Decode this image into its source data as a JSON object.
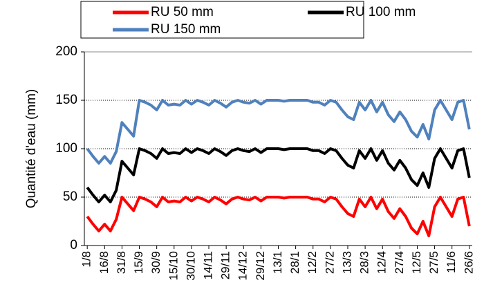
{
  "chart_data": {
    "type": "line",
    "y_label": "Quantité d'eau (mm)",
    "categories": [
      "1/8",
      null,
      null,
      "16/8",
      null,
      null,
      "31/8",
      null,
      null,
      "15/9",
      null,
      null,
      "30/9",
      null,
      null,
      "15/10",
      null,
      null,
      "30/10",
      null,
      null,
      "14/11",
      null,
      null,
      "29/11",
      null,
      null,
      "14/12",
      null,
      null,
      "29/12",
      null,
      null,
      "13/1",
      null,
      null,
      "28/1",
      null,
      null,
      "12/2",
      null,
      null,
      "27/2",
      null,
      null,
      "13/3",
      null,
      null,
      "28/3",
      null,
      null,
      "12/4",
      null,
      null,
      "27/4",
      null,
      null,
      "12/5",
      null,
      null,
      "27/5",
      null,
      null,
      "11/6",
      null,
      null,
      "26/6"
    ],
    "series": [
      {
        "name": "RU 50 mm",
        "color": "#ff0000",
        "values": [
          30,
          22,
          15,
          22,
          15,
          27,
          50,
          43,
          36,
          50,
          48,
          45,
          40,
          50,
          45,
          46,
          45,
          50,
          46,
          50,
          48,
          45,
          50,
          47,
          43,
          48,
          50,
          48,
          47,
          50,
          46,
          50,
          50,
          50,
          49,
          50,
          50,
          50,
          50,
          48,
          48,
          45,
          50,
          48,
          40,
          33,
          30,
          48,
          40,
          50,
          38,
          48,
          35,
          28,
          38,
          30,
          18,
          12,
          25,
          10,
          40,
          50,
          40,
          30,
          48,
          50,
          20
        ]
      },
      {
        "name": "RU 100 mm",
        "color": "#000000",
        "values": [
          60,
          52,
          45,
          52,
          45,
          57,
          87,
          80,
          73,
          100,
          98,
          95,
          90,
          100,
          95,
          96,
          95,
          100,
          96,
          100,
          98,
          95,
          100,
          97,
          93,
          98,
          100,
          98,
          97,
          100,
          96,
          100,
          100,
          100,
          99,
          100,
          100,
          100,
          100,
          98,
          98,
          95,
          100,
          98,
          90,
          83,
          80,
          98,
          90,
          100,
          88,
          98,
          85,
          78,
          88,
          80,
          68,
          62,
          75,
          60,
          90,
          100,
          90,
          80,
          98,
          100,
          70
        ]
      },
      {
        "name": "RU 150 mm",
        "color": "#4f81bd",
        "values": [
          100,
          92,
          85,
          92,
          85,
          97,
          127,
          120,
          113,
          150,
          148,
          145,
          140,
          150,
          145,
          146,
          145,
          150,
          146,
          150,
          148,
          145,
          150,
          147,
          143,
          148,
          150,
          148,
          147,
          150,
          146,
          150,
          150,
          150,
          149,
          150,
          150,
          150,
          150,
          148,
          148,
          145,
          150,
          148,
          140,
          133,
          130,
          148,
          140,
          150,
          138,
          148,
          135,
          128,
          138,
          130,
          118,
          112,
          125,
          110,
          140,
          150,
          140,
          130,
          148,
          150,
          120
        ]
      }
    ],
    "ylim": [
      0,
      200
    ],
    "yticks": [
      0,
      50,
      100,
      150,
      200
    ],
    "grid": true
  }
}
